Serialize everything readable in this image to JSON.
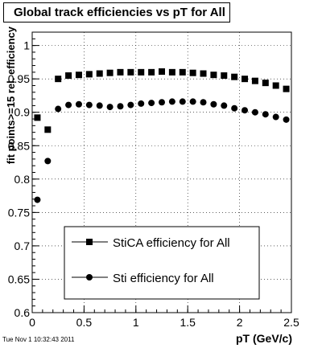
{
  "chart_data": {
    "type": "scatter",
    "title": "Global track efficiencies vs pT for All",
    "xlabel": "pT (GeV/c)",
    "ylabel": "fit points>=15 rel. efficiency",
    "xlim": [
      0,
      2.5
    ],
    "ylim": [
      0.6,
      1.02
    ],
    "x_ticks": [
      0,
      0.5,
      1,
      1.5,
      2,
      2.5
    ],
    "x_tick_labels": [
      "0",
      "0.5",
      "1",
      "1.5",
      "2",
      "2.5"
    ],
    "y_ticks": [
      0.6,
      0.65,
      0.7,
      0.75,
      0.8,
      0.85,
      0.9,
      0.95,
      1
    ],
    "y_tick_labels": [
      "0.6",
      "0.65",
      "0.7",
      "0.75",
      "0.8",
      "0.85",
      "0.9",
      "0.95",
      "1"
    ],
    "grid": true,
    "legend_placement": "bottom-center",
    "series": [
      {
        "name": "StiCA efficiency  for All",
        "marker": "square",
        "color": "#000000",
        "x": [
          0.05,
          0.15,
          0.25,
          0.35,
          0.45,
          0.55,
          0.65,
          0.75,
          0.85,
          0.95,
          1.05,
          1.15,
          1.25,
          1.35,
          1.45,
          1.55,
          1.65,
          1.75,
          1.85,
          1.95,
          2.05,
          2.15,
          2.25,
          2.35,
          2.45
        ],
        "y": [
          0.892,
          0.874,
          0.95,
          0.955,
          0.956,
          0.957,
          0.958,
          0.959,
          0.96,
          0.96,
          0.96,
          0.96,
          0.961,
          0.96,
          0.96,
          0.959,
          0.958,
          0.956,
          0.955,
          0.953,
          0.95,
          0.947,
          0.944,
          0.94,
          0.935
        ]
      },
      {
        "name": "Sti efficiency  for All",
        "marker": "circle",
        "color": "#000000",
        "x": [
          0.05,
          0.15,
          0.25,
          0.35,
          0.45,
          0.55,
          0.65,
          0.75,
          0.85,
          0.95,
          1.05,
          1.15,
          1.25,
          1.35,
          1.45,
          1.55,
          1.65,
          1.75,
          1.85,
          1.95,
          2.05,
          2.15,
          2.25,
          2.35,
          2.45
        ],
        "y": [
          0.769,
          0.827,
          0.905,
          0.911,
          0.912,
          0.911,
          0.91,
          0.908,
          0.909,
          0.911,
          0.913,
          0.914,
          0.915,
          0.916,
          0.916,
          0.916,
          0.915,
          0.912,
          0.91,
          0.906,
          0.903,
          0.9,
          0.897,
          0.893,
          0.889
        ]
      }
    ]
  },
  "footer": {
    "timestamp": "Tue Nov  1 10:32:43 2011"
  }
}
